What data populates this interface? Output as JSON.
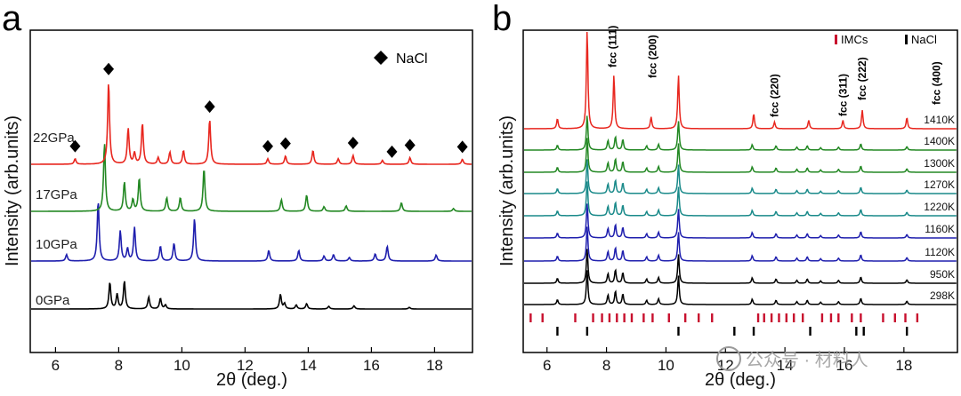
{
  "panel_a": {
    "letter": "a"
  },
  "panel_b": {
    "letter": "b"
  },
  "watermark": {
    "text": "公众号 · 材料人"
  },
  "chart_data": [
    {
      "type": "line",
      "title": "",
      "xlabel": "2θ (deg.)",
      "ylabel": "Intensity (arb.units)",
      "xlim": [
        5.2,
        19.2
      ],
      "xticks": [
        6,
        8,
        10,
        12,
        14,
        16,
        18
      ],
      "legend": {
        "label": "NaCl",
        "marker": "diamond",
        "placement": "top-right"
      },
      "series": [
        {
          "name": "0GPa",
          "color": "#000000",
          "baseline": 0,
          "peaks": [
            [
              7.72,
              1.0
            ],
            [
              7.95,
              0.55
            ],
            [
              8.18,
              1.05
            ],
            [
              8.95,
              0.45
            ],
            [
              9.32,
              0.4
            ],
            [
              9.48,
              0.15
            ],
            [
              13.12,
              0.55
            ],
            [
              13.25,
              0.2
            ],
            [
              13.62,
              0.15
            ],
            [
              13.95,
              0.2
            ],
            [
              14.65,
              0.1
            ],
            [
              15.45,
              0.12
            ],
            [
              17.2,
              0.06
            ]
          ]
        },
        {
          "name": "10GPa",
          "color": "#1f1fae",
          "baseline": 1,
          "peaks": [
            [
              6.35,
              0.18
            ],
            [
              7.35,
              1.7
            ],
            [
              8.05,
              0.85
            ],
            [
              8.28,
              0.35
            ],
            [
              8.5,
              0.95
            ],
            [
              9.32,
              0.42
            ],
            [
              9.75,
              0.5
            ],
            [
              10.4,
              1.2
            ],
            [
              12.75,
              0.3
            ],
            [
              13.7,
              0.3
            ],
            [
              14.5,
              0.14
            ],
            [
              14.8,
              0.18
            ],
            [
              15.3,
              0.1
            ],
            [
              16.12,
              0.2
            ],
            [
              16.5,
              0.42
            ],
            [
              18.05,
              0.17
            ]
          ]
        },
        {
          "name": "17GPa",
          "color": "#238823",
          "baseline": 2,
          "peaks": [
            [
              7.55,
              1.75
            ],
            [
              8.18,
              0.75
            ],
            [
              8.45,
              0.3
            ],
            [
              8.65,
              0.85
            ],
            [
              9.52,
              0.35
            ],
            [
              9.95,
              0.35
            ],
            [
              10.7,
              1.1
            ],
            [
              13.15,
              0.3
            ],
            [
              13.95,
              0.42
            ],
            [
              14.5,
              0.12
            ],
            [
              15.2,
              0.14
            ],
            [
              16.95,
              0.22
            ],
            [
              18.6,
              0.07
            ]
          ]
        },
        {
          "name": "22GPa",
          "color": "#e8261e",
          "baseline": 3,
          "peaks": [
            [
              6.62,
              0.1
            ],
            [
              7.68,
              1.5
            ],
            [
              8.3,
              0.65
            ],
            [
              8.5,
              0.2
            ],
            [
              8.75,
              0.75
            ],
            [
              9.25,
              0.12
            ],
            [
              9.62,
              0.22
            ],
            [
              10.05,
              0.25
            ],
            [
              10.88,
              0.82
            ],
            [
              12.72,
              0.1
            ],
            [
              13.28,
              0.15
            ],
            [
              14.15,
              0.25
            ],
            [
              14.95,
              0.1
            ],
            [
              15.42,
              0.16
            ],
            [
              16.35,
              0.07
            ],
            [
              17.22,
              0.12
            ],
            [
              18.88,
              0.09
            ]
          ]
        }
      ],
      "nacl_markers": [
        6.62,
        7.68,
        10.88,
        12.72,
        13.28,
        15.42,
        16.65,
        17.22,
        18.88
      ]
    },
    {
      "type": "line",
      "title": "",
      "xlabel": "2θ (deg.)",
      "ylabel": "Intensity (arb.units)",
      "xlim": [
        5.2,
        19.8
      ],
      "xticks": [
        6,
        8,
        10,
        12,
        14,
        16,
        18
      ],
      "legend": {
        "entries": [
          {
            "label": "IMCs",
            "color": "#c8102e"
          },
          {
            "label": "NaCl",
            "color": "#000000"
          }
        ],
        "placement": "top-right"
      },
      "peak_annotations": [
        {
          "label": "fcc (111)",
          "x": 8.2
        },
        {
          "label": "fcc (200)",
          "x": 9.55
        },
        {
          "label": "fcc (220)",
          "x": 13.65
        },
        {
          "label": "fcc (311)",
          "x": 15.95
        },
        {
          "label": "fcc (222)",
          "x": 16.6
        },
        {
          "label": "fcc (400)",
          "x": 19.1
        }
      ],
      "series": [
        {
          "name": "298K",
          "color": "#000000"
        },
        {
          "name": "950K",
          "color": "#000000"
        },
        {
          "name": "1120K",
          "color": "#1f1fae"
        },
        {
          "name": "1160K",
          "color": "#1f1fae"
        },
        {
          "name": "1220K",
          "color": "#1a8a8a"
        },
        {
          "name": "1270K",
          "color": "#1a8a8a"
        },
        {
          "name": "1300K",
          "color": "#238823"
        },
        {
          "name": "1400K",
          "color": "#238823"
        },
        {
          "name": "1410K",
          "color": "#e8261e"
        }
      ],
      "common_peaks": [
        [
          6.35,
          0.25
        ],
        [
          7.35,
          1.8
        ],
        [
          8.05,
          0.5
        ],
        [
          8.3,
          0.7
        ],
        [
          8.55,
          0.55
        ],
        [
          9.35,
          0.22
        ],
        [
          9.75,
          0.3
        ],
        [
          10.42,
          1.5
        ],
        [
          12.9,
          0.28
        ],
        [
          13.7,
          0.22
        ],
        [
          14.4,
          0.15
        ],
        [
          14.75,
          0.22
        ],
        [
          15.2,
          0.12
        ],
        [
          15.8,
          0.15
        ],
        [
          16.55,
          0.32
        ],
        [
          18.1,
          0.18
        ]
      ],
      "final_peaks": [
        [
          6.35,
          0.3
        ],
        [
          7.35,
          3.0
        ],
        [
          8.25,
          1.6
        ],
        [
          9.5,
          0.35
        ],
        [
          10.42,
          1.6
        ],
        [
          12.95,
          0.45
        ],
        [
          13.65,
          0.2
        ],
        [
          14.8,
          0.25
        ],
        [
          15.95,
          0.25
        ],
        [
          16.6,
          0.55
        ],
        [
          18.1,
          0.33
        ]
      ],
      "imc_ticks": [
        5.45,
        5.85,
        6.95,
        7.55,
        7.85,
        8.1,
        8.35,
        8.6,
        8.85,
        9.25,
        9.55,
        10.1,
        10.65,
        11.1,
        11.55,
        13.1,
        13.3,
        13.55,
        13.8,
        14.05,
        14.3,
        14.6,
        15.25,
        15.55,
        15.8,
        16.25,
        16.55,
        17.3,
        17.7,
        18.05,
        18.45
      ],
      "nacl_ticks": [
        6.35,
        7.35,
        10.42,
        12.3,
        12.95,
        14.85,
        16.4,
        16.65,
        18.1
      ]
    }
  ]
}
